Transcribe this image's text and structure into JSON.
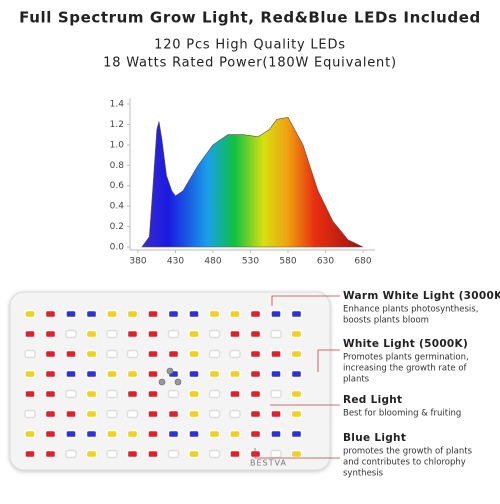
{
  "header": {
    "title": "Full Spectrum Grow Light, Red&Blue LEDs Included",
    "lines": [
      "120 Pcs High Quality LEDs",
      "18 Watts Rated Power(180W Equivalent)"
    ]
  },
  "spectrum": {
    "x": [
      385,
      395,
      400,
      405,
      408,
      412,
      418,
      425,
      430,
      440,
      460,
      480,
      500,
      520,
      540,
      555,
      565,
      580,
      600,
      620,
      640,
      660,
      680
    ],
    "y": [
      0,
      0.1,
      0.6,
      1.15,
      1.23,
      1.05,
      0.7,
      0.55,
      0.5,
      0.55,
      0.8,
      1.0,
      1.1,
      1.1,
      1.08,
      1.15,
      1.25,
      1.27,
      1.0,
      0.55,
      0.25,
      0.07,
      0
    ],
    "xlim": [
      380,
      680
    ],
    "ylim": [
      0,
      1.4
    ],
    "xticks": [
      380,
      430,
      480,
      530,
      580,
      630,
      680
    ],
    "yticks": [
      {
        "value": 0,
        "label": "0.0"
      },
      0.2,
      0.4,
      0.6,
      0.8,
      {
        "value": 1,
        "label": "1.0"
      },
      1.2,
      1.4
    ]
  },
  "brand": "BESTVA",
  "callouts": [
    {
      "title": "Warm White Light (3000K)",
      "lines": [
        "Enhance plants photosynthesis,",
        "boosts plants bloom"
      ]
    },
    {
      "title": "White Light (5000K)",
      "lines": [
        "Promotes plants germination,",
        "increasing the growth rate of",
        "plants"
      ]
    },
    {
      "title": "Red Light",
      "lines": [
        "Best for blooming & fruiting"
      ]
    },
    {
      "title": "Blue Light",
      "lines": [
        "promotes the growth of plants",
        "and contributes to chlorophy",
        "synthesis"
      ]
    }
  ]
}
